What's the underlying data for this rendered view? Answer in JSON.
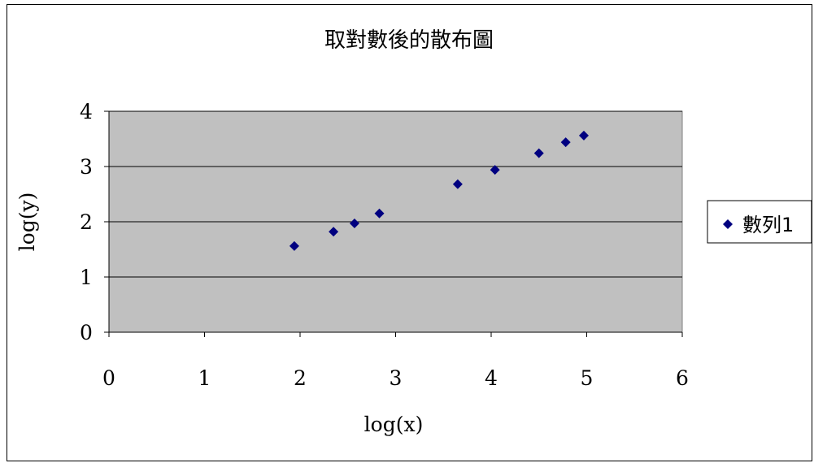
{
  "chart_data": {
    "type": "scatter",
    "title": "取對數後的散布圖",
    "xlabel": "log(x)",
    "ylabel": "log(y)",
    "xlim": [
      0,
      6
    ],
    "ylim": [
      0,
      4
    ],
    "x_ticks": [
      "0",
      "1",
      "2",
      "3",
      "4",
      "5",
      "6"
    ],
    "y_ticks": [
      "0",
      "1",
      "2",
      "3",
      "4"
    ],
    "grid": "horizontal",
    "plot_background": "#c0c0c0",
    "legend_position": "right",
    "series": [
      {
        "name": "數列1",
        "color": "#000080",
        "marker": "diamond",
        "points": [
          {
            "x": 1.94,
            "y": 1.56
          },
          {
            "x": 2.35,
            "y": 1.82
          },
          {
            "x": 2.57,
            "y": 1.97
          },
          {
            "x": 2.83,
            "y": 2.15
          },
          {
            "x": 3.65,
            "y": 2.68
          },
          {
            "x": 4.04,
            "y": 2.94
          },
          {
            "x": 4.5,
            "y": 3.24
          },
          {
            "x": 4.78,
            "y": 3.44
          },
          {
            "x": 4.97,
            "y": 3.56
          }
        ]
      }
    ]
  }
}
